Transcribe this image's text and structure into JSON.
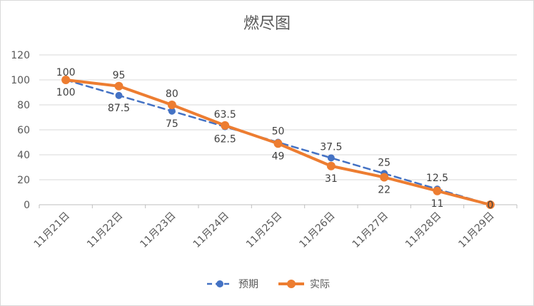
{
  "chart_data": {
    "type": "line",
    "title": "燃尽图",
    "xlabel": "",
    "ylabel": "",
    "categories": [
      "11月21日",
      "11月22日",
      "11月23日",
      "11月24日",
      "11月25日",
      "11月26日",
      "11月27日",
      "11月28日",
      "11月29日"
    ],
    "ylim": [
      0,
      120
    ],
    "yticks": [
      0,
      20,
      40,
      60,
      80,
      100,
      120
    ],
    "grid": true,
    "legend_position": "bottom",
    "series": [
      {
        "name": "预期",
        "values": [
          100,
          87.5,
          75,
          62.5,
          50,
          37.5,
          25,
          12.5,
          0
        ],
        "color": "#4472C4",
        "style": "dashed",
        "labels": [
          "100",
          "87.5",
          "75",
          "62.5",
          "50",
          "37.5",
          "25",
          "12.5",
          "0"
        ]
      },
      {
        "name": "实际",
        "values": [
          100,
          95,
          80,
          63.5,
          49,
          31,
          22,
          11,
          0
        ],
        "color": "#ED7D31",
        "style": "solid",
        "labels": [
          "100",
          "95",
          "80",
          "63.5",
          "49",
          "31",
          "22",
          "11",
          "0"
        ]
      }
    ]
  }
}
